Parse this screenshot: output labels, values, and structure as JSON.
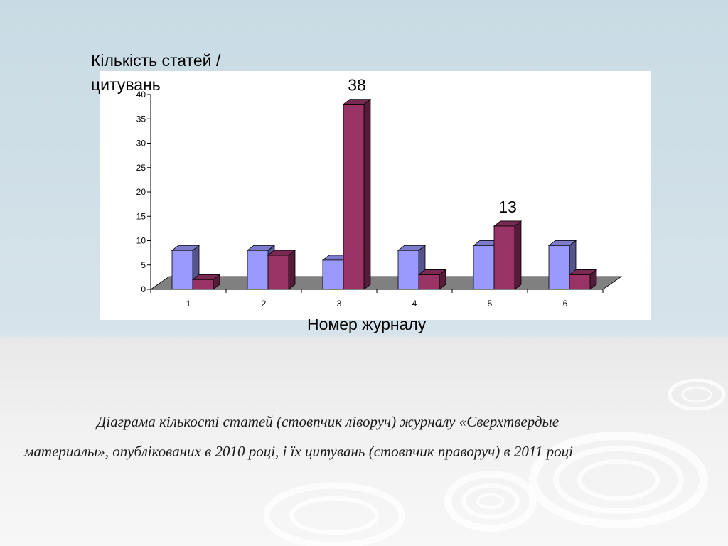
{
  "chart_data": {
    "type": "bar",
    "categories": [
      "1",
      "2",
      "3",
      "4",
      "5",
      "6"
    ],
    "series": [
      {
        "values": [
          8,
          8,
          6,
          8,
          9,
          9
        ],
        "color": "#9a99fe"
      },
      {
        "values": [
          2,
          7,
          38,
          3,
          13,
          3
        ],
        "color": "#993366"
      }
    ],
    "ylabel": "Кількість статей / цитувань",
    "xlabel": "Номер журналу",
    "ylim": [
      0,
      40
    ],
    "yticks": [
      "0",
      "5",
      "10",
      "15",
      "20",
      "25",
      "30",
      "35",
      "40"
    ],
    "annotations": [
      {
        "series": 1,
        "category": "3",
        "text": "38"
      },
      {
        "series": 1,
        "category": "5",
        "text": "13"
      }
    ],
    "grid": false,
    "view": "3d-clustered"
  },
  "caption": {
    "line1": "Діаграма кількості статей (стовпчик ліворуч) журналу «Сверхтвердые",
    "line2": "материалы», опублікованих в 2010 році, і їх  цитувань (стовпчик праворуч) в 2011 році"
  }
}
